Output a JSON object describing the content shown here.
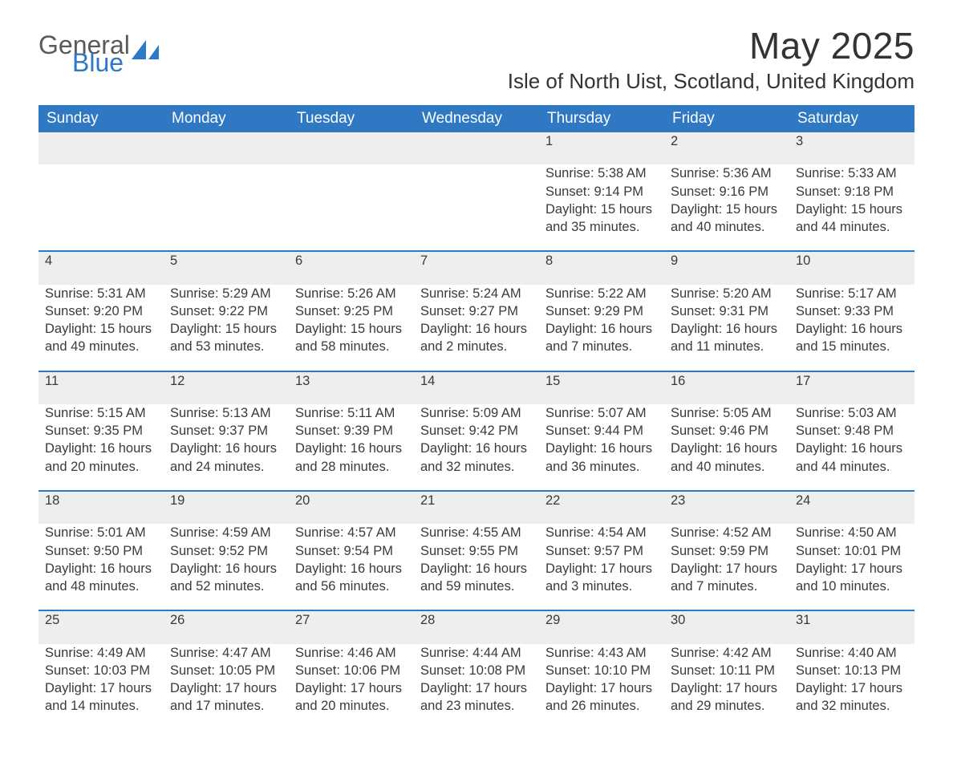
{
  "brand": {
    "word1": "General",
    "word2": "Blue",
    "accent_color": "#2f78c4",
    "text_color": "#5a5a5a"
  },
  "header": {
    "month_title": "May 2025",
    "location": "Isle of North Uist, Scotland, United Kingdom"
  },
  "calendar": {
    "header_bg": "#2f78c4",
    "header_fg": "#ffffff",
    "daynum_bg": "#eeeeee",
    "rule_color": "#2f78c4",
    "day_headers": [
      "Sunday",
      "Monday",
      "Tuesday",
      "Wednesday",
      "Thursday",
      "Friday",
      "Saturday"
    ],
    "weeks": [
      [
        null,
        null,
        null,
        null,
        {
          "n": "1",
          "sunrise": "Sunrise: 5:38 AM",
          "sunset": "Sunset: 9:14 PM",
          "daylight": "Daylight: 15 hours and 35 minutes."
        },
        {
          "n": "2",
          "sunrise": "Sunrise: 5:36 AM",
          "sunset": "Sunset: 9:16 PM",
          "daylight": "Daylight: 15 hours and 40 minutes."
        },
        {
          "n": "3",
          "sunrise": "Sunrise: 5:33 AM",
          "sunset": "Sunset: 9:18 PM",
          "daylight": "Daylight: 15 hours and 44 minutes."
        }
      ],
      [
        {
          "n": "4",
          "sunrise": "Sunrise: 5:31 AM",
          "sunset": "Sunset: 9:20 PM",
          "daylight": "Daylight: 15 hours and 49 minutes."
        },
        {
          "n": "5",
          "sunrise": "Sunrise: 5:29 AM",
          "sunset": "Sunset: 9:22 PM",
          "daylight": "Daylight: 15 hours and 53 minutes."
        },
        {
          "n": "6",
          "sunrise": "Sunrise: 5:26 AM",
          "sunset": "Sunset: 9:25 PM",
          "daylight": "Daylight: 15 hours and 58 minutes."
        },
        {
          "n": "7",
          "sunrise": "Sunrise: 5:24 AM",
          "sunset": "Sunset: 9:27 PM",
          "daylight": "Daylight: 16 hours and 2 minutes."
        },
        {
          "n": "8",
          "sunrise": "Sunrise: 5:22 AM",
          "sunset": "Sunset: 9:29 PM",
          "daylight": "Daylight: 16 hours and 7 minutes."
        },
        {
          "n": "9",
          "sunrise": "Sunrise: 5:20 AM",
          "sunset": "Sunset: 9:31 PM",
          "daylight": "Daylight: 16 hours and 11 minutes."
        },
        {
          "n": "10",
          "sunrise": "Sunrise: 5:17 AM",
          "sunset": "Sunset: 9:33 PM",
          "daylight": "Daylight: 16 hours and 15 minutes."
        }
      ],
      [
        {
          "n": "11",
          "sunrise": "Sunrise: 5:15 AM",
          "sunset": "Sunset: 9:35 PM",
          "daylight": "Daylight: 16 hours and 20 minutes."
        },
        {
          "n": "12",
          "sunrise": "Sunrise: 5:13 AM",
          "sunset": "Sunset: 9:37 PM",
          "daylight": "Daylight: 16 hours and 24 minutes."
        },
        {
          "n": "13",
          "sunrise": "Sunrise: 5:11 AM",
          "sunset": "Sunset: 9:39 PM",
          "daylight": "Daylight: 16 hours and 28 minutes."
        },
        {
          "n": "14",
          "sunrise": "Sunrise: 5:09 AM",
          "sunset": "Sunset: 9:42 PM",
          "daylight": "Daylight: 16 hours and 32 minutes."
        },
        {
          "n": "15",
          "sunrise": "Sunrise: 5:07 AM",
          "sunset": "Sunset: 9:44 PM",
          "daylight": "Daylight: 16 hours and 36 minutes."
        },
        {
          "n": "16",
          "sunrise": "Sunrise: 5:05 AM",
          "sunset": "Sunset: 9:46 PM",
          "daylight": "Daylight: 16 hours and 40 minutes."
        },
        {
          "n": "17",
          "sunrise": "Sunrise: 5:03 AM",
          "sunset": "Sunset: 9:48 PM",
          "daylight": "Daylight: 16 hours and 44 minutes."
        }
      ],
      [
        {
          "n": "18",
          "sunrise": "Sunrise: 5:01 AM",
          "sunset": "Sunset: 9:50 PM",
          "daylight": "Daylight: 16 hours and 48 minutes."
        },
        {
          "n": "19",
          "sunrise": "Sunrise: 4:59 AM",
          "sunset": "Sunset: 9:52 PM",
          "daylight": "Daylight: 16 hours and 52 minutes."
        },
        {
          "n": "20",
          "sunrise": "Sunrise: 4:57 AM",
          "sunset": "Sunset: 9:54 PM",
          "daylight": "Daylight: 16 hours and 56 minutes."
        },
        {
          "n": "21",
          "sunrise": "Sunrise: 4:55 AM",
          "sunset": "Sunset: 9:55 PM",
          "daylight": "Daylight: 16 hours and 59 minutes."
        },
        {
          "n": "22",
          "sunrise": "Sunrise: 4:54 AM",
          "sunset": "Sunset: 9:57 PM",
          "daylight": "Daylight: 17 hours and 3 minutes."
        },
        {
          "n": "23",
          "sunrise": "Sunrise: 4:52 AM",
          "sunset": "Sunset: 9:59 PM",
          "daylight": "Daylight: 17 hours and 7 minutes."
        },
        {
          "n": "24",
          "sunrise": "Sunrise: 4:50 AM",
          "sunset": "Sunset: 10:01 PM",
          "daylight": "Daylight: 17 hours and 10 minutes."
        }
      ],
      [
        {
          "n": "25",
          "sunrise": "Sunrise: 4:49 AM",
          "sunset": "Sunset: 10:03 PM",
          "daylight": "Daylight: 17 hours and 14 minutes."
        },
        {
          "n": "26",
          "sunrise": "Sunrise: 4:47 AM",
          "sunset": "Sunset: 10:05 PM",
          "daylight": "Daylight: 17 hours and 17 minutes."
        },
        {
          "n": "27",
          "sunrise": "Sunrise: 4:46 AM",
          "sunset": "Sunset: 10:06 PM",
          "daylight": "Daylight: 17 hours and 20 minutes."
        },
        {
          "n": "28",
          "sunrise": "Sunrise: 4:44 AM",
          "sunset": "Sunset: 10:08 PM",
          "daylight": "Daylight: 17 hours and 23 minutes."
        },
        {
          "n": "29",
          "sunrise": "Sunrise: 4:43 AM",
          "sunset": "Sunset: 10:10 PM",
          "daylight": "Daylight: 17 hours and 26 minutes."
        },
        {
          "n": "30",
          "sunrise": "Sunrise: 4:42 AM",
          "sunset": "Sunset: 10:11 PM",
          "daylight": "Daylight: 17 hours and 29 minutes."
        },
        {
          "n": "31",
          "sunrise": "Sunrise: 4:40 AM",
          "sunset": "Sunset: 10:13 PM",
          "daylight": "Daylight: 17 hours and 32 minutes."
        }
      ]
    ]
  }
}
